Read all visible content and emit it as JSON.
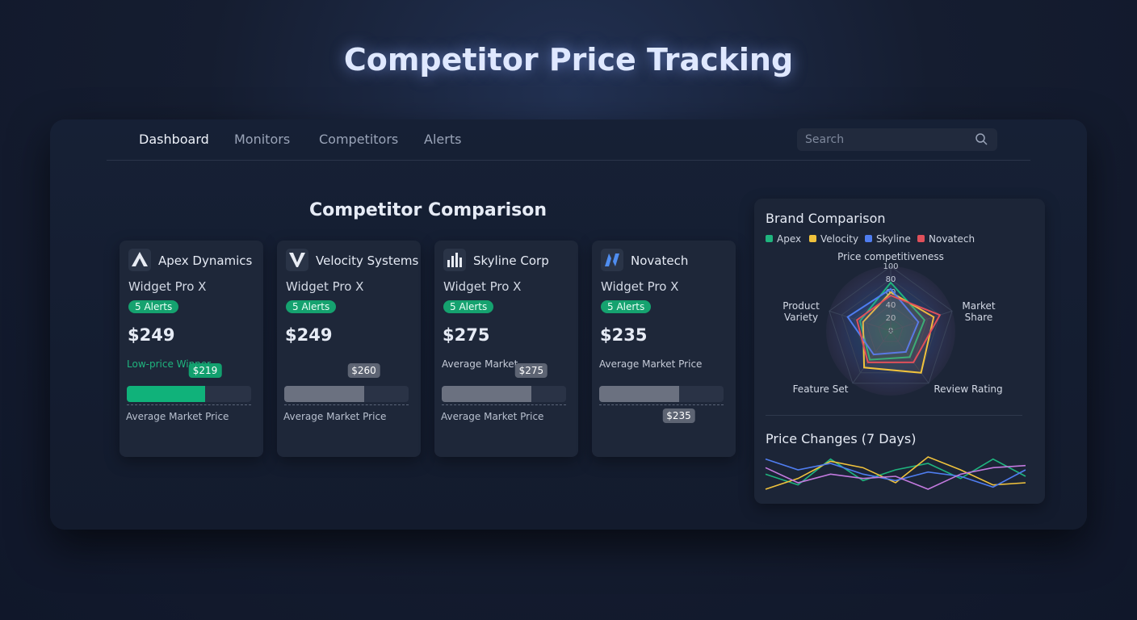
{
  "header": {
    "title": "Competitor Price Tracking"
  },
  "nav": {
    "items": [
      "Dashboard",
      "Monitors",
      "Competitors",
      "Alerts"
    ],
    "active": 0,
    "search_placeholder": "Search"
  },
  "comparison": {
    "title": "Competitor Comparison",
    "cards": [
      {
        "company": "Apex Dynamics",
        "product": "Widget Pro X",
        "alerts": "5 Alerts",
        "price": "$249",
        "note": "Low-price Winner",
        "note_color": "#1fb47e",
        "tag": "$219",
        "tag_color": "#12a06e",
        "bar_value": 63,
        "bar_color": "#10b27a",
        "bar_label": "Average Market Price"
      },
      {
        "company": "Velocity Systems",
        "product": "Widget Pro X",
        "alerts": "5 Alerts",
        "price": "$249",
        "tag": "$260",
        "tag_color": "#5d6473",
        "bar_value": 64,
        "bar_color": "#6b7180",
        "bar_label": "Average Market Price"
      },
      {
        "company": "Skyline Corp",
        "product": "Widget Pro X",
        "alerts": "5 Alerts",
        "price": "$275",
        "note": "Average Market",
        "note_color": "#c5cbd8",
        "tag": "$275",
        "tag_color": "#5d6473",
        "bar_value": 72,
        "bar_color": "#6b7180",
        "bar_label": "Average Market Price"
      },
      {
        "company": "Novatech",
        "product": "Widget Pro X",
        "alerts": "5 Alerts",
        "price": "$235",
        "note": "Average Market Price",
        "note_color": "#c5cbd8",
        "tag": "$235",
        "tag_color": "#5d6473",
        "tag_below": true,
        "bar_value": 64,
        "bar_color": "#6b7180"
      }
    ]
  },
  "radar": {
    "type": "radar",
    "title": "Brand Comparison",
    "axes": [
      "Price competitiveness",
      "Market Share",
      "Review Rating",
      "Feature Set",
      "Product Variety"
    ],
    "rlim": [
      0,
      100
    ],
    "rticks": [
      0,
      20,
      40,
      60,
      80,
      100
    ],
    "series": [
      {
        "name": "Apex",
        "color": "#1fb47e",
        "values": [
          75,
          55,
          50,
          55,
          50
        ]
      },
      {
        "name": "Velocity",
        "color": "#f0c23c",
        "values": [
          60,
          70,
          80,
          70,
          45
        ]
      },
      {
        "name": "Skyline",
        "color": "#4f7df0",
        "values": [
          65,
          45,
          40,
          45,
          70
        ]
      },
      {
        "name": "Novatech",
        "color": "#e0505a",
        "values": [
          55,
          80,
          60,
          60,
          55
        ]
      }
    ]
  },
  "price_changes": {
    "type": "line",
    "title": "Price Changes (7 Days)",
    "series": [
      {
        "name": "Apex",
        "color": "#1fb47e",
        "values": [
          45,
          20,
          80,
          30,
          55,
          70,
          35,
          80,
          40
        ]
      },
      {
        "name": "Velocity",
        "color": "#f0c23c",
        "values": [
          10,
          35,
          75,
          60,
          25,
          85,
          55,
          20,
          25
        ]
      },
      {
        "name": "Skyline",
        "color": "#4f7df0",
        "values": [
          80,
          55,
          70,
          45,
          30,
          50,
          40,
          15,
          55
        ]
      },
      {
        "name": "Novatech",
        "color": "#c37adf",
        "values": [
          60,
          25,
          45,
          35,
          40,
          10,
          45,
          60,
          65
        ]
      }
    ]
  }
}
